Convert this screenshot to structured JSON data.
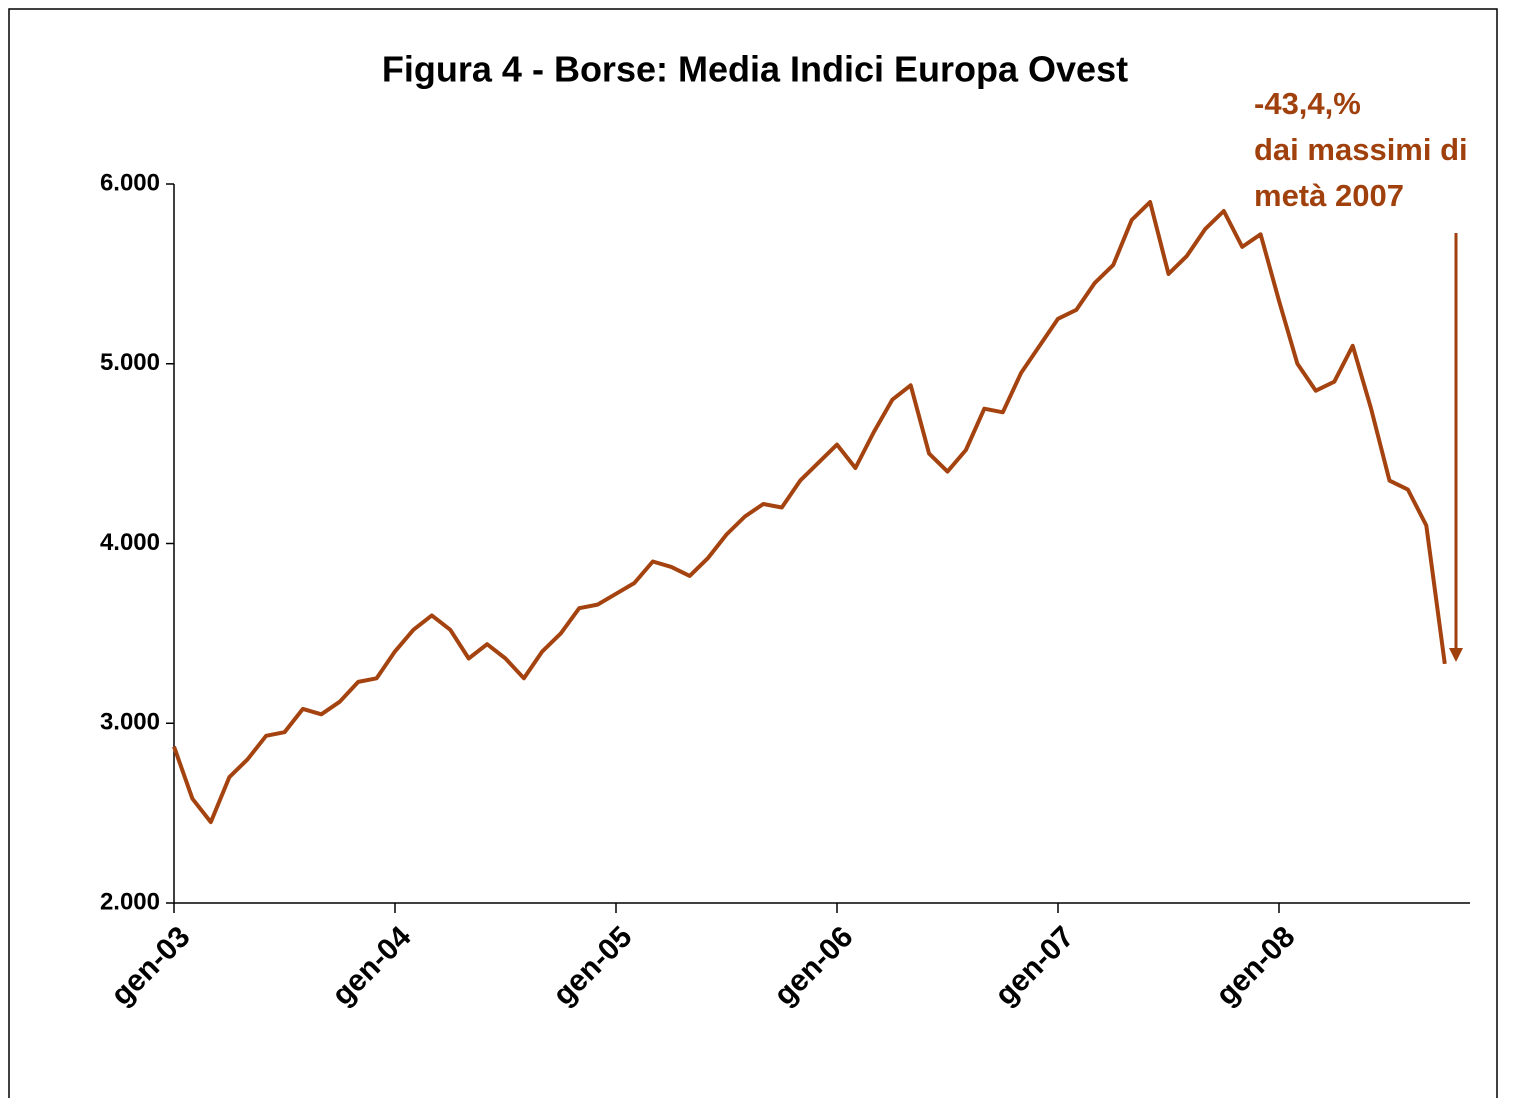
{
  "chart_data": {
    "type": "line",
    "title": "Figura 4 - Borse: Media Indici Europa Ovest",
    "annotation": [
      "-43,4,%",
      "dai massimi di",
      "metà 2007"
    ],
    "categories": [
      "gen-03",
      null,
      null,
      null,
      null,
      null,
      null,
      null,
      null,
      null,
      null,
      null,
      "gen-04",
      null,
      null,
      null,
      null,
      null,
      null,
      null,
      null,
      null,
      null,
      null,
      "gen-05",
      null,
      null,
      null,
      null,
      null,
      null,
      null,
      null,
      null,
      null,
      null,
      "gen-06",
      null,
      null,
      null,
      null,
      null,
      null,
      null,
      null,
      null,
      null,
      null,
      "gen-07",
      null,
      null,
      null,
      null,
      null,
      null,
      null,
      null,
      null,
      null,
      null,
      "gen-08",
      null,
      null,
      null,
      null,
      null,
      null,
      null,
      null,
      null
    ],
    "series": [
      {
        "name": "Media Indici Europa Ovest",
        "color": "#a4430f",
        "values": [
          2870,
          2580,
          2450,
          2700,
          2800,
          2930,
          2950,
          3080,
          3050,
          3120,
          3230,
          3250,
          3400,
          3520,
          3600,
          3520,
          3360,
          3440,
          3360,
          3250,
          3400,
          3500,
          3640,
          3660,
          3720,
          3780,
          3900,
          3870,
          3820,
          3920,
          4050,
          4150,
          4220,
          4200,
          4350,
          4450,
          4550,
          4420,
          4620,
          4800,
          4880,
          4500,
          4400,
          4520,
          4750,
          4730,
          4950,
          5100,
          5250,
          5300,
          5450,
          5550,
          5800,
          5900,
          5500,
          5600,
          5750,
          5850,
          5650,
          5720,
          5350,
          5000,
          4850,
          4900,
          5100,
          4750,
          4350,
          4300,
          4100,
          3330
        ]
      }
    ],
    "ylim": [
      2000,
      6000
    ],
    "yticks": [
      {
        "value": 2000,
        "label": "2.000"
      },
      {
        "value": 3000,
        "label": "3.000"
      },
      {
        "value": 4000,
        "label": "4.000"
      },
      {
        "value": 5000,
        "label": "5.000"
      },
      {
        "value": 6000,
        "label": "6.000"
      }
    ],
    "annotation_color": "#a0400c"
  }
}
